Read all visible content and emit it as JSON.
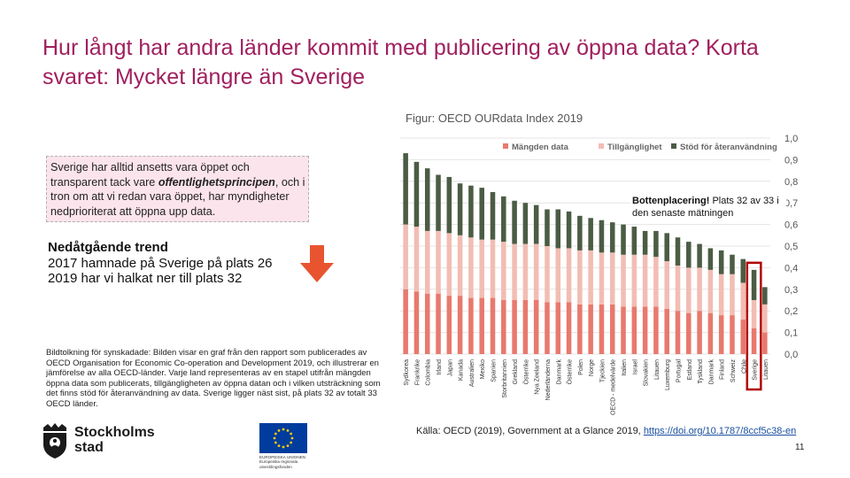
{
  "title": "Hur långt har andra länder kommit med publicering av öppna data? Korta svaret: Mycket längre än Sverige",
  "figure_caption": "Figur: OECD OURdata Index 2019",
  "callout": {
    "part1": "Sverige har alltid ansetts vara öppet och transparent tack vare ",
    "emphasis": "offentlighetsprincipen",
    "part2": ", och i tron om att vi redan vara öppet, har myndigheter nedprioriterat att öppna upp data."
  },
  "trend": {
    "heading": "Nedåtgående trend",
    "line1": "2017 hamnade på Sverige på plats 26",
    "line2": "2019 har vi halkat ner till plats 32"
  },
  "alt_text": "Bildtolkning för synskadade: Bilden visar en graf från den rapport som publicerades av OECD Organisation for Economic Co-operation and Development 2019, och illustrerar en jämförelse av alla OECD-länder. Varje land representeras av en stapel utifrån mängden öppna data som publicerats, tillgängligheten av öppna datan och i vilken utsträckning som det finns stöd för återanvändning av data. Sverige ligger näst sist, på plats 32 av totalt 33 OECD länder.",
  "annotation": {
    "bold": "Bottenplacering!",
    "rest": " Plats 32 av 33 i den senaste mätningen"
  },
  "source": {
    "text": "Källa: OECD (2019), Government at a Glance 2019, ",
    "link": "https://doi.org/10.1787/8ccf5c38-en"
  },
  "page_number": "11",
  "logos": {
    "stockholm_line1": "Stockholms",
    "stockholm_line2": "stad",
    "eu_line1": "EUROPEISKA UNIONEN",
    "eu_line2": "Europeiska regionala",
    "eu_line3": "utvecklingsfonden"
  },
  "colors": {
    "title": "#a01f5e",
    "data_availability": "#e8796e",
    "data_accessibility": "#f2bdb3",
    "reuse_support": "#4b5c44",
    "highlight": "#b00000",
    "arrow": "#e8542f"
  },
  "chart_data": {
    "type": "bar",
    "stacked": true,
    "orientation": "vertical",
    "title": "",
    "ylim": [
      0,
      1.0
    ],
    "yticks": [
      "0,0",
      "0,1",
      "0,2",
      "0,3",
      "0,4",
      "0,5",
      "0,6",
      "0,7",
      "0,8",
      "0,9",
      "1,0"
    ],
    "y_axis_side": "right",
    "legend_position": "top",
    "highlight_category": "Sverige",
    "categories": [
      "Sydkorea",
      "Frankrike",
      "Colombia",
      "Irland",
      "Japan",
      "Kanada",
      "Australien",
      "Mexiko",
      "Spanien",
      "Storbritannien",
      "Grekland",
      "Österrike",
      "Nya Zeeland",
      "Nederländerna",
      "Danmark",
      "Österrike",
      "Polen",
      "Norge",
      "Tjeckien",
      "OECD - medelvärde",
      "Italien",
      "Israel",
      "Slovakien",
      "Litauen",
      "Luxemburg",
      "Portugal",
      "Estland",
      "Tyskland",
      "Danmark",
      "Finland",
      "Schweiz",
      "Chile",
      "Sverige",
      "Litauen"
    ],
    "series": [
      {
        "name": "Mängden data",
        "values": [
          0.3,
          0.29,
          0.28,
          0.28,
          0.27,
          0.27,
          0.26,
          0.26,
          0.26,
          0.25,
          0.25,
          0.25,
          0.25,
          0.24,
          0.24,
          0.24,
          0.23,
          0.23,
          0.23,
          0.23,
          0.22,
          0.22,
          0.22,
          0.22,
          0.21,
          0.2,
          0.19,
          0.2,
          0.19,
          0.18,
          0.18,
          0.16,
          0.12,
          0.1
        ]
      },
      {
        "name": "Tillgänglighet",
        "values": [
          0.3,
          0.3,
          0.29,
          0.29,
          0.29,
          0.28,
          0.28,
          0.27,
          0.27,
          0.27,
          0.26,
          0.26,
          0.26,
          0.26,
          0.25,
          0.25,
          0.25,
          0.25,
          0.24,
          0.24,
          0.24,
          0.24,
          0.24,
          0.23,
          0.22,
          0.21,
          0.21,
          0.2,
          0.2,
          0.19,
          0.19,
          0.17,
          0.13,
          0.13
        ]
      },
      {
        "name": "Stöd för återanvändning",
        "values": [
          0.33,
          0.3,
          0.29,
          0.26,
          0.26,
          0.24,
          0.24,
          0.24,
          0.22,
          0.21,
          0.2,
          0.19,
          0.18,
          0.17,
          0.18,
          0.17,
          0.16,
          0.15,
          0.15,
          0.14,
          0.14,
          0.13,
          0.11,
          0.12,
          0.13,
          0.13,
          0.12,
          0.11,
          0.1,
          0.11,
          0.09,
          0.11,
          0.14,
          0.08
        ]
      }
    ]
  }
}
